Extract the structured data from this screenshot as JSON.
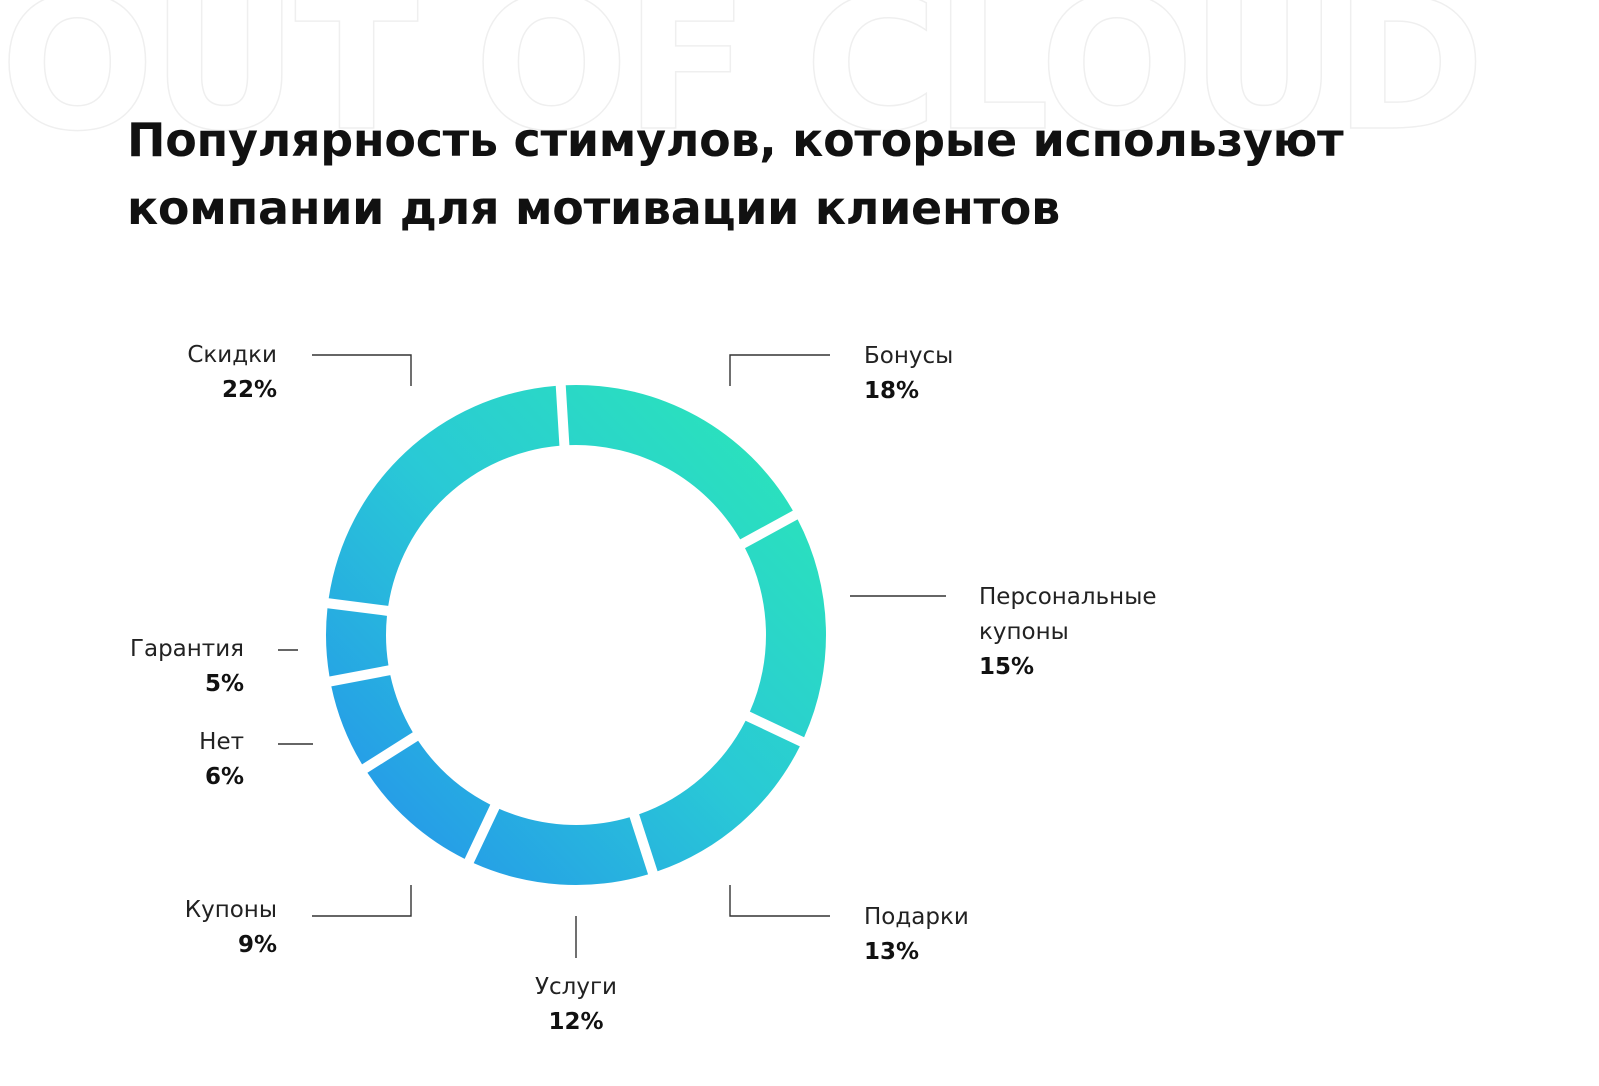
{
  "watermark": "OUT OF CLOUD",
  "chart_data": {
    "type": "pie",
    "variant": "donut",
    "title": "Популярность стимулов, которые используют компании для мотивации клиентов",
    "title_lines": [
      "Популярность стимулов, которые используют",
      "компании для мотивации клиентов"
    ],
    "unit": "%",
    "gradient_colors": {
      "green": "#2be5b9",
      "teal": "#29c9d6",
      "blue": "#2596ea"
    },
    "slices": [
      {
        "name": "Бонусы",
        "value": 18,
        "value_label": "18%"
      },
      {
        "name": "Персональные купоны",
        "name_lines": [
          "Персональные",
          "купоны"
        ],
        "value": 15,
        "value_label": "15%"
      },
      {
        "name": "Подарки",
        "value": 13,
        "value_label": "13%"
      },
      {
        "name": "Услуги",
        "value": 12,
        "value_label": "12%"
      },
      {
        "name": "Купоны",
        "value": 9,
        "value_label": "9%"
      },
      {
        "name": "Нет",
        "value": 6,
        "value_label": "6%"
      },
      {
        "name": "Гарантия",
        "value": 5,
        "value_label": "5%"
      },
      {
        "name": "Скидки",
        "value": 22,
        "value_label": "22%"
      }
    ]
  }
}
